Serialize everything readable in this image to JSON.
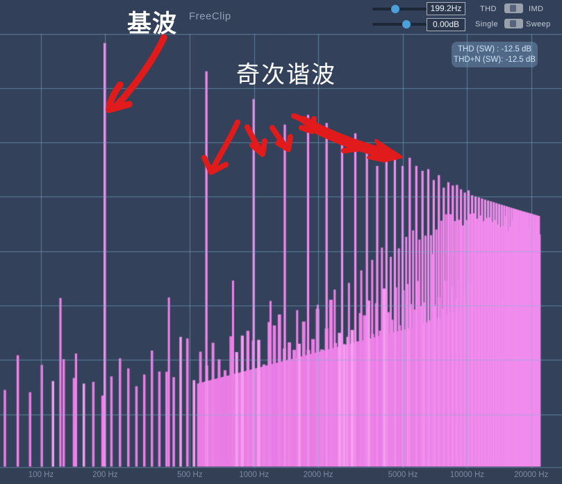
{
  "header": {
    "annotation_title": "基波",
    "app_name": "FreeClip",
    "freq_slider": {
      "value": "199.2Hz",
      "fraction": 0.42
    },
    "gain_slider": {
      "value": "0.00dB",
      "fraction": 0.63
    },
    "mode_toggle": {
      "left_label": "THD",
      "right_label": "IMD",
      "selected": "left"
    },
    "sweep_toggle": {
      "left_label": "Single",
      "right_label": "Sweep",
      "selected": "left"
    }
  },
  "readout": {
    "line1": "THD (SW) : -12.5 dB",
    "line2": "THD+N (SW): -12.5 dB"
  },
  "annotations": {
    "odd_harmonics_label": "奇次谐波"
  },
  "x_axis": {
    "labels": [
      {
        "text": "100 Hz",
        "hz": 100
      },
      {
        "text": "200 Hz",
        "hz": 200
      },
      {
        "text": "500 Hz",
        "hz": 500
      },
      {
        "text": "1000 Hz",
        "hz": 1000
      },
      {
        "text": "2000 Hz",
        "hz": 2000
      },
      {
        "text": "5000 Hz",
        "hz": 5000
      },
      {
        "text": "10000 Hz",
        "hz": 10000
      },
      {
        "text": "20000 Hz",
        "hz": 20000
      }
    ]
  },
  "colors": {
    "accent_blue": "#4ba1d8",
    "bar_pink": "#ec83e8",
    "bar_pink_light": "#f59df0",
    "bar_pink_dark": "#e97de4",
    "odd_harmonic_pink": "#f08ced",
    "grid_blue": "#7fb0d2",
    "annotation_red": "#e11b1b",
    "plot_bg": "#33425a"
  },
  "chart_data": {
    "type": "bar",
    "title": "Harmonic spectrum of clipped 199.2 Hz sine (THD sweep view)",
    "x_scale": "log",
    "x_unit": "Hz",
    "x_ticks": [
      100,
      200,
      500,
      1000,
      2000,
      5000,
      10000,
      20000
    ],
    "y_unit": "dB",
    "db_per_division": 10,
    "fundamental_hz": 199.2,
    "fundamental_db": -1.4,
    "fft_bin_hz": 11.07,
    "nyquist_hz": 22050,
    "odd_harmonics_db": [
      [
        1,
        -1.4
      ],
      [
        3,
        -6.6
      ],
      [
        5,
        -11.7
      ],
      [
        7,
        -16.4
      ],
      [
        9,
        -14.6
      ],
      [
        11,
        -16.1
      ],
      [
        13,
        -18.3
      ],
      [
        15,
        -18.0
      ],
      [
        17,
        -20.1
      ],
      [
        19,
        -24.0
      ],
      [
        21,
        -22.4
      ],
      [
        23,
        -22.4
      ],
      [
        25,
        -24.0
      ],
      [
        27,
        -22.5
      ],
      [
        29,
        -24.0
      ],
      [
        31,
        -24.9
      ],
      [
        33,
        -24.6
      ],
      [
        35,
        -26.6
      ],
      [
        37,
        -25.7
      ],
      [
        39,
        -28.0
      ],
      [
        41,
        -27.0
      ],
      [
        43,
        -27.6
      ],
      [
        45,
        -27.5
      ],
      [
        47,
        -28.3
      ],
      [
        49,
        -28.9
      ],
      [
        51,
        -28.5
      ],
      [
        53,
        -29.4
      ],
      [
        61,
        -30.2
      ],
      [
        71,
        -31.0
      ],
      [
        81,
        -31.7
      ],
      [
        91,
        -32.3
      ],
      [
        101,
        -32.8
      ],
      [
        109,
        -33.2
      ]
    ],
    "even_harmonics_db": [
      [
        2,
        -48.2
      ],
      [
        4,
        -46.1
      ],
      [
        8,
        -50.0
      ],
      [
        20,
        -40.0
      ],
      [
        38,
        -34.0
      ],
      [
        60,
        -34.0
      ],
      [
        110,
        -36.0
      ]
    ],
    "noise_floor_db": [
      [
        64,
        -63
      ],
      [
        200,
        -64
      ],
      [
        610,
        -59
      ],
      [
        1880,
        -54
      ],
      [
        5800,
        -49
      ],
      [
        12300,
        -44
      ],
      [
        22050,
        -39
      ]
    ],
    "extra_peaks_db": [
      [
        123.4,
        -48.3
      ],
      [
        146.0,
        -58.5
      ]
    ],
    "thd_sw_db": -12.5,
    "thd_n_sw_db": -12.5
  }
}
